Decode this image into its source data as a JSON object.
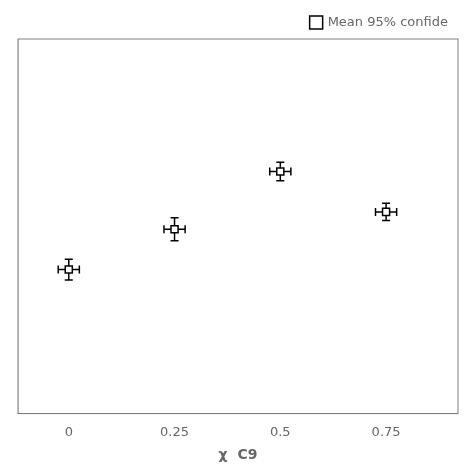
{
  "chart_data": {
    "type": "scatter",
    "x": [
      0,
      0.25,
      0.5,
      0.75
    ],
    "series": [
      {
        "name": "Mean 95% confide",
        "color": "#000000",
        "marker": "square",
        "values": [
          0.55,
          0.62,
          0.72,
          0.65
        ],
        "yerr": [
          0.018,
          0.02,
          0.016,
          0.015
        ],
        "xerr": [
          0.025,
          0.025,
          0.025,
          0.025
        ]
      }
    ],
    "xlabel": "χ  C9",
    "xlim": [
      -0.12,
      0.92
    ],
    "ylim": [
      0.3,
      0.95
    ],
    "xticks": [
      0,
      0.25,
      0.5,
      0.75
    ],
    "tick_labels": "x",
    "grid": false,
    "legend": "upper right"
  }
}
